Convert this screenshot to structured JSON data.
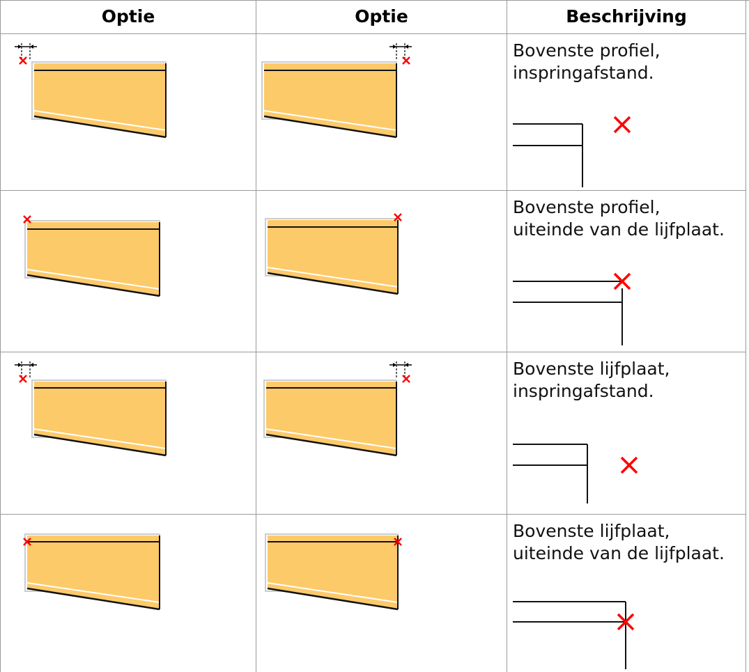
{
  "table": {
    "header": [
      "Optie",
      "Optie",
      "Beschrijving"
    ],
    "rows": [
      {
        "description": [
          "Bovenste profiel,",
          "inspringafstand."
        ]
      },
      {
        "description": [
          "Bovenste profiel,",
          "uiteinde van de lijfplaat."
        ]
      },
      {
        "description": [
          "Bovenste lijfplaat,",
          "inspringafstand."
        ]
      },
      {
        "description": [
          "Bovenste lijfplaat,",
          "uiteinde van de lijfplaat."
        ]
      }
    ]
  }
}
